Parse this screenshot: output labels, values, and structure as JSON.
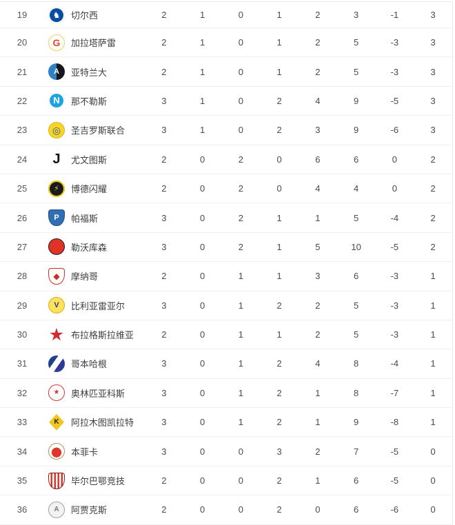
{
  "page": {
    "background": "#ffffff",
    "divider_color": "#efefef",
    "text_color": "#4a4a4a",
    "rank_color": "#555555"
  },
  "standings": {
    "rows": [
      {
        "rank": "19",
        "team": "切尔西",
        "logo": {
          "shape": "circle",
          "name": "chelsea-crest",
          "bg": "#0b4ba1",
          "ring": "#ffffff",
          "fg": "#ffffff",
          "glyph": "♞",
          "size": 12
        },
        "stats": [
          "2",
          "1",
          "0",
          "1",
          "2",
          "3",
          "-1",
          "3"
        ]
      },
      {
        "rank": "20",
        "team": "加拉塔萨雷",
        "logo": {
          "shape": "circle",
          "name": "galatasaray-crest",
          "bg": "#ffffff",
          "border": "#f5cf54",
          "fg": "#e04a27",
          "glyph": "G",
          "size": 14
        },
        "stats": [
          "2",
          "1",
          "0",
          "1",
          "2",
          "5",
          "-3",
          "3"
        ]
      },
      {
        "rank": "21",
        "team": "亚特兰大",
        "logo": {
          "shape": "circle",
          "name": "atalanta-crest",
          "bg": "linear-gradient(90deg,#2f80c4 0 50%,#15171c 50% 100%)",
          "fg": "#ffffff",
          "glyph": "A",
          "size": 11
        },
        "stats": [
          "2",
          "1",
          "0",
          "1",
          "2",
          "5",
          "-3",
          "3"
        ]
      },
      {
        "rank": "22",
        "team": "那不勒斯",
        "logo": {
          "shape": "circle",
          "name": "napoli-crest",
          "bg": "#1ca3e0",
          "ring": "#ffffff",
          "fg": "#ffffff",
          "glyph": "N",
          "size": 13
        },
        "stats": [
          "3",
          "1",
          "0",
          "2",
          "4",
          "9",
          "-5",
          "3"
        ]
      },
      {
        "rank": "23",
        "team": "圣吉罗斯联合",
        "logo": {
          "shape": "circle",
          "name": "union-sg-crest",
          "bg": "#f7d426",
          "border": "#d9b71a",
          "fg": "#2b58a5",
          "glyph": "◎",
          "size": 14
        },
        "stats": [
          "3",
          "1",
          "0",
          "2",
          "3",
          "9",
          "-6",
          "3"
        ]
      },
      {
        "rank": "24",
        "team": "尤文图斯",
        "logo": {
          "shape": "plain",
          "name": "juventus-crest",
          "fg": "#141414",
          "glyph": "J",
          "size": 20
        },
        "stats": [
          "2",
          "0",
          "2",
          "0",
          "6",
          "6",
          "0",
          "2"
        ]
      },
      {
        "rank": "25",
        "team": "博德闪耀",
        "logo": {
          "shape": "circle",
          "name": "bodo-glimt-crest",
          "bg": "#191b1e",
          "ring": "#f2d219",
          "fg": "#f2d219",
          "glyph": "⚡",
          "size": 11
        },
        "stats": [
          "2",
          "0",
          "2",
          "0",
          "4",
          "4",
          "0",
          "2"
        ]
      },
      {
        "rank": "26",
        "team": "帕福斯",
        "logo": {
          "shape": "shield",
          "name": "pafos-crest",
          "bg": "#3070b2",
          "border": "#1f4f88",
          "fg": "#ffffff",
          "glyph": "P",
          "size": 11
        },
        "stats": [
          "3",
          "0",
          "2",
          "1",
          "1",
          "5",
          "-4",
          "2"
        ]
      },
      {
        "rank": "27",
        "team": "勒沃库森",
        "logo": {
          "shape": "circle",
          "name": "leverkusen-crest",
          "bg": "#e23125",
          "border": "#1c1c1c",
          "fg": "#1c1c1c",
          "glyph": "",
          "size": 12
        },
        "stats": [
          "3",
          "0",
          "2",
          "1",
          "5",
          "10",
          "-5",
          "2"
        ]
      },
      {
        "rank": "28",
        "team": "摩纳哥",
        "logo": {
          "shape": "shield",
          "name": "monaco-crest",
          "bg": "#ffffff",
          "border": "#d22b20",
          "fg": "#d22b20",
          "glyph": "◆",
          "size": 12
        },
        "stats": [
          "2",
          "0",
          "1",
          "1",
          "3",
          "6",
          "-3",
          "1"
        ]
      },
      {
        "rank": "29",
        "team": "比利亚雷亚尔",
        "logo": {
          "shape": "circle",
          "name": "villarreal-crest",
          "bg": "#ffe25c",
          "border": "#d8ae14",
          "fg": "#27398c",
          "glyph": "V",
          "size": 11
        },
        "stats": [
          "3",
          "0",
          "1",
          "2",
          "2",
          "5",
          "-3",
          "1"
        ]
      },
      {
        "rank": "30",
        "team": "布拉格斯拉维亚",
        "logo": {
          "shape": "plain",
          "name": "slavia-praha-crest",
          "fg": "#d42b30",
          "glyph": "★",
          "size": 25
        },
        "stats": [
          "2",
          "0",
          "1",
          "1",
          "2",
          "5",
          "-3",
          "1"
        ]
      },
      {
        "rank": "31",
        "team": "哥本哈根",
        "logo": {
          "shape": "circle",
          "name": "copenhagen-crest",
          "bg": "linear-gradient(125deg,#20418c 0 36%,#ffffff 36% 60%,#2d3a96 60% 100%)",
          "fg": "#ffffff",
          "glyph": "",
          "size": 11
        },
        "stats": [
          "3",
          "0",
          "1",
          "2",
          "4",
          "8",
          "-4",
          "1"
        ]
      },
      {
        "rank": "32",
        "team": "奥林匹亚科斯",
        "logo": {
          "shape": "circle",
          "name": "olympiacos-crest",
          "bg": "#ffffff",
          "border": "#d5372c",
          "fg": "#d5372c",
          "glyph": "★",
          "size": 10
        },
        "stats": [
          "3",
          "0",
          "1",
          "2",
          "1",
          "8",
          "-7",
          "1"
        ]
      },
      {
        "rank": "33",
        "team": "阿拉木图凯拉特",
        "logo": {
          "shape": "diamond",
          "name": "kairat-crest",
          "bg": "#efc71e",
          "fg": "#20242a",
          "glyph": "K",
          "size": 10
        },
        "stats": [
          "3",
          "0",
          "1",
          "2",
          "1",
          "9",
          "-8",
          "1"
        ]
      },
      {
        "rank": "34",
        "team": "本菲卡",
        "logo": {
          "shape": "circle",
          "name": "benfica-crest",
          "bg": "radial-gradient(circle at 50% 58%, #df352b 0 42%, #ffffff 42% 100%)",
          "border": "#b09155",
          "fg": "",
          "glyph": ""
        },
        "stats": [
          "3",
          "0",
          "0",
          "3",
          "2",
          "7",
          "-5",
          "0"
        ]
      },
      {
        "rank": "35",
        "team": "毕尔巴鄂竞技",
        "logo": {
          "shape": "shield",
          "name": "athletic-bilbao-crest",
          "bg": "repeating-linear-gradient(90deg,#ffffff 0 2.5px,#d5372c 2.5px 5px)",
          "border": "#8e1c16",
          "fg": "",
          "glyph": ""
        },
        "stats": [
          "2",
          "0",
          "0",
          "2",
          "1",
          "6",
          "-5",
          "0"
        ]
      },
      {
        "rank": "36",
        "team": "阿贾克斯",
        "logo": {
          "shape": "circle",
          "name": "ajax-crest",
          "bg": "#f3f3f3",
          "border": "#9f9f9f",
          "fg": "#787878",
          "glyph": "A",
          "size": 10
        },
        "stats": [
          "2",
          "0",
          "0",
          "2",
          "0",
          "6",
          "-6",
          "0"
        ]
      }
    ]
  }
}
